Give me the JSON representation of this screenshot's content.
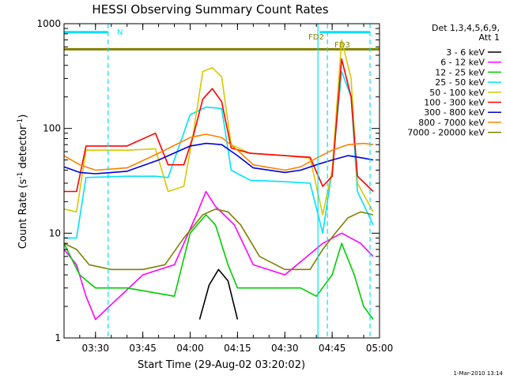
{
  "chart_data": {
    "type": "line",
    "title": "HESSI Observing Summary Count Rates",
    "xlabel": "Start Time (29-Aug-02 03:20:02)",
    "ylabel_main": "Count Rate (s",
    "ylabel_sup1": "-1",
    "ylabel_mid": " detector",
    "ylabel_sup2": "-1",
    "ylabel_end": ")",
    "footer_date": "1-Mar-2010 13:14",
    "y_scale": "log",
    "ylim": [
      1,
      1000
    ],
    "xlim": [
      "03:20:02",
      "05:00:00"
    ],
    "x_ticks": [
      "03:30",
      "03:45",
      "04:00",
      "04:15",
      "04:30",
      "04:45",
      "05:00"
    ],
    "y_ticks": [
      "1",
      "10",
      "100",
      "1000"
    ],
    "legend_placement": "right",
    "legend_header": [
      "Det 1,3,4,5,6,9,",
      "Att 1"
    ],
    "series": [
      {
        "name": "3 - 6 keV",
        "color": "#000000",
        "x": [
          "04:03",
          "04:06",
          "04:09",
          "04:12",
          "04:15"
        ],
        "values": [
          1.5,
          3.2,
          4.5,
          3.5,
          1.5
        ]
      },
      {
        "name": "6 - 12 keV",
        "color": "#ff00ff",
        "x": [
          "03:20",
          "03:24",
          "03:27",
          "03:30",
          "03:45",
          "03:55",
          "04:02",
          "04:05",
          "04:08",
          "04:14",
          "04:20",
          "04:30",
          "04:42",
          "04:48",
          "04:54",
          "04:58"
        ],
        "values": [
          7,
          5,
          2.5,
          1.5,
          4,
          5,
          15,
          25,
          18,
          12,
          5,
          4,
          8,
          10,
          8,
          6
        ]
      },
      {
        "name": "12 - 25 keV",
        "color": "#00cc00",
        "x": [
          "03:20",
          "03:25",
          "03:30",
          "03:40",
          "03:55",
          "04:00",
          "04:05",
          "04:08",
          "04:12",
          "04:15",
          "04:20",
          "04:35",
          "04:40",
          "04:45",
          "04:48",
          "04:52",
          "04:55",
          "04:58"
        ],
        "values": [
          8,
          4,
          3,
          3,
          2.5,
          10,
          15,
          12,
          5,
          3,
          3,
          3,
          2.5,
          4,
          8,
          4,
          2,
          1.5
        ]
      },
      {
        "name": "25 - 50 keV",
        "color": "#00e0ff",
        "x": [
          "03:20",
          "03:24",
          "03:27",
          "03:40",
          "03:49",
          "03:53",
          "04:00",
          "04:05",
          "04:10",
          "04:13",
          "04:19",
          "04:30",
          "04:38",
          "04:42",
          "04:45",
          "04:48",
          "04:51",
          "04:53",
          "04:58"
        ],
        "values": [
          9,
          9,
          34,
          35,
          35,
          34,
          135,
          160,
          155,
          40,
          32,
          31,
          30,
          10,
          40,
          350,
          200,
          25,
          12
        ]
      },
      {
        "name": "50 - 100 keV",
        "color": "#d8c800",
        "x": [
          "03:20",
          "03:24",
          "03:27",
          "03:40",
          "03:49",
          "03:53",
          "03:58",
          "04:01",
          "04:04",
          "04:07",
          "04:10",
          "04:13",
          "04:19",
          "04:30",
          "04:38",
          "04:42",
          "04:45",
          "04:48",
          "04:51",
          "04:53",
          "04:58"
        ],
        "values": [
          17,
          16,
          62,
          62,
          64,
          25,
          28,
          90,
          350,
          380,
          310,
          70,
          58,
          55,
          52,
          15,
          40,
          700,
          300,
          30,
          16
        ]
      },
      {
        "name": "100 - 300 keV",
        "color": "#ff0000",
        "x": [
          "03:20",
          "03:24",
          "03:27",
          "03:40",
          "03:49",
          "03:53",
          "03:58",
          "04:01",
          "04:04",
          "04:07",
          "04:10",
          "04:13",
          "04:19",
          "04:30",
          "04:38",
          "04:42",
          "04:45",
          "04:48",
          "04:51",
          "04:53",
          "04:58"
        ],
        "values": [
          25,
          25,
          68,
          68,
          90,
          45,
          45,
          85,
          190,
          240,
          180,
          65,
          58,
          55,
          53,
          28,
          35,
          460,
          200,
          35,
          25
        ]
      },
      {
        "name": "300 - 800 keV",
        "color": "#0000dd",
        "x": [
          "03:20",
          "03:25",
          "03:30",
          "03:40",
          "03:50",
          "04:00",
          "04:05",
          "04:10",
          "04:15",
          "04:20",
          "04:30",
          "04:35",
          "04:40",
          "04:45",
          "04:50",
          "04:55",
          "04:58"
        ],
        "values": [
          43,
          38,
          37,
          39,
          50,
          68,
          72,
          70,
          55,
          42,
          38,
          40,
          45,
          50,
          55,
          52,
          50
        ]
      },
      {
        "name": "800 - 7000 keV",
        "color": "#ff8000",
        "x": [
          "03:20",
          "03:25",
          "03:30",
          "03:40",
          "03:50",
          "04:00",
          "04:05",
          "04:10",
          "04:15",
          "04:20",
          "04:30",
          "04:35",
          "04:40",
          "04:45",
          "04:50",
          "04:55",
          "04:58"
        ],
        "values": [
          55,
          45,
          40,
          42,
          58,
          82,
          88,
          82,
          62,
          45,
          40,
          43,
          52,
          62,
          70,
          72,
          70
        ]
      },
      {
        "name": "7000 - 20000 keV",
        "color": "#808000",
        "x": [
          "03:20",
          "03:24",
          "03:28",
          "03:35",
          "03:45",
          "03:52",
          "03:58",
          "04:04",
          "04:08",
          "04:12",
          "04:16",
          "04:22",
          "04:30",
          "04:38",
          "04:42",
          "04:46",
          "04:50",
          "04:54",
          "04:58"
        ],
        "values": [
          8,
          7,
          5,
          4.5,
          4.5,
          5,
          9,
          15,
          17,
          16,
          12,
          6,
          4.5,
          4.5,
          7,
          10,
          14,
          16,
          15
        ]
      }
    ],
    "flags": [
      {
        "label": "N",
        "color": "#00e0ff",
        "x_start": "03:20:02",
        "x_end": "03:34:00",
        "level": 830
      },
      {
        "label": "",
        "color": "#00e0ff",
        "x_start": "04:41:00",
        "x_end": "04:57:00",
        "level": 830
      },
      {
        "label": "FD2",
        "color": "#808000",
        "x_start": "03:20:02",
        "x_end": "05:00:00",
        "level": 570
      },
      {
        "label": "FD3",
        "color": "#808000",
        "x_start": "",
        "x_end": "",
        "level": 570
      }
    ],
    "vertical_markers": [
      {
        "x": "03:34:00",
        "style": "dashed",
        "color": "#00e0ff"
      },
      {
        "x": "04:40:30",
        "style": "solid",
        "color": "#00e0ff"
      },
      {
        "x": "04:43:30",
        "style": "dashed",
        "color": "#00e0ff"
      },
      {
        "x": "04:57:00",
        "style": "dashed",
        "color": "#00e0ff"
      }
    ]
  }
}
